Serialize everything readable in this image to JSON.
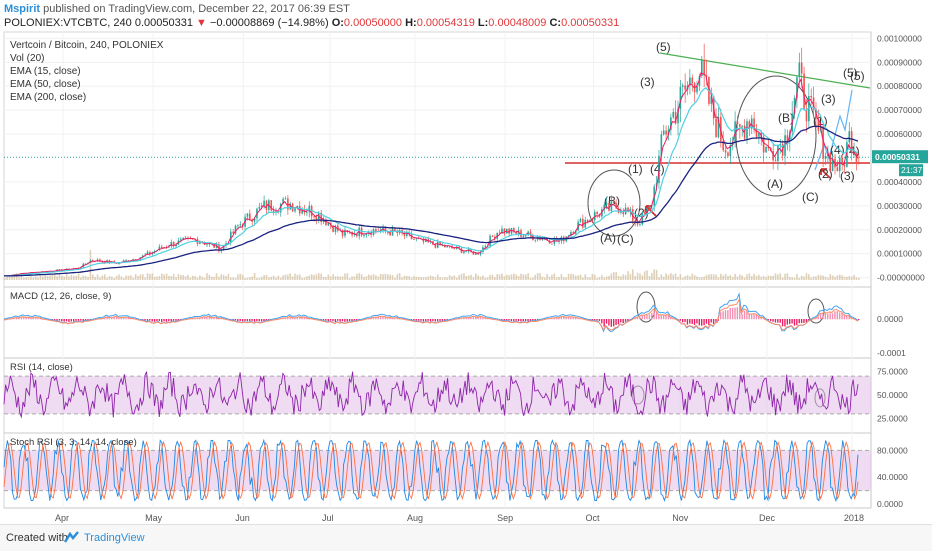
{
  "header": {
    "author": "Mspirit",
    "published_text": "published on TradingView.com, December 22, 2017 06:39 EST",
    "symbol_line": "POLONIEX:VTCBTC, 240",
    "last": "0.00050331",
    "arrow": "▼",
    "change": "−0.00008869 (−14.98%)",
    "o_label": "O:",
    "o_val": "0.00050000",
    "h_label": "H:",
    "h_val": "0.00054319",
    "l_label": "L:",
    "l_val": "0.00048009",
    "c_label": "C:",
    "c_val": "0.00050331"
  },
  "footer": {
    "created": "Created with",
    "brand": "TradingView"
  },
  "colors": {
    "up": "#26a69a",
    "down": "#ef5350",
    "ema15": "#e91e63",
    "ema50": "#4dd0e1",
    "ema200": "#1a237e",
    "rsi": "#8e24aa",
    "stoch_k": "#1e88e5",
    "stoch_d": "#ff7043",
    "band": "#e1bee7"
  },
  "chart_data": [
    {
      "type": "candlestick",
      "title": "Vertcoin / Bitcoin, 240, POLONIEX",
      "legend": [
        "Vol (20)",
        "EMA (15, close)",
        "EMA (50, close)",
        "EMA (200, close)"
      ],
      "x_ticks": [
        "Apr",
        "May",
        "Jun",
        "Jul",
        "Aug",
        "Sep",
        "Oct",
        "Nov",
        "Dec",
        "2018"
      ],
      "y_ticks": [
        "0.00100000",
        "0.00090000",
        "0.00080000",
        "0.00070000",
        "0.00060000",
        "0.00040000",
        "0.00030000",
        "0.00020000",
        "0.00010000",
        "-0.00000000"
      ],
      "ylim": [
        -1e-05,
        0.00101
      ],
      "price_anchors": [
        [
          0,
          7e-06
        ],
        [
          0.02,
          1.8e-05
        ],
        [
          0.06,
          3e-05
        ],
        [
          0.085,
          4e-05
        ],
        [
          0.1,
          7.5e-05
        ],
        [
          0.13,
          6e-05
        ],
        [
          0.16,
          9e-05
        ],
        [
          0.19,
          0.00014
        ],
        [
          0.22,
          0.00016
        ],
        [
          0.25,
          0.00012
        ],
        [
          0.27,
          0.00022
        ],
        [
          0.3,
          0.0003
        ],
        [
          0.33,
          0.00031
        ],
        [
          0.36,
          0.00027
        ],
        [
          0.39,
          0.00018
        ],
        [
          0.42,
          0.0002
        ],
        [
          0.45,
          0.00019
        ],
        [
          0.48,
          0.00015
        ],
        [
          0.52,
          0.00012
        ],
        [
          0.545,
          0.0001
        ],
        [
          0.57,
          0.0002
        ],
        [
          0.6,
          0.00018
        ],
        [
          0.64,
          0.00015
        ],
        [
          0.66,
          0.00022
        ],
        [
          0.69,
          0.00028
        ],
        [
          0.71,
          0.0003
        ],
        [
          0.73,
          0.00023
        ],
        [
          0.745,
          0.00029
        ],
        [
          0.76,
          0.0006
        ],
        [
          0.78,
          0.00075
        ],
        [
          0.8,
          0.00088
        ],
        [
          0.815,
          0.0007
        ],
        [
          0.83,
          0.00055
        ],
        [
          0.845,
          0.0006
        ],
        [
          0.86,
          0.00068
        ],
        [
          0.88,
          0.00052
        ],
        [
          0.9,
          0.00058
        ],
        [
          0.915,
          0.00083
        ],
        [
          0.93,
          0.00068
        ],
        [
          0.95,
          0.0005
        ],
        [
          0.965,
          0.00045
        ],
        [
          0.975,
          0.0006
        ],
        [
          0.985,
          0.0005
        ]
      ],
      "last_price": "0.00050331",
      "countdown": "21:37",
      "wave_labels": [
        "(A)",
        "(B)",
        "(C)",
        "(1)",
        "(2)",
        "(3)",
        "(4)",
        "(5)",
        "(3)",
        "(4)",
        "(5)",
        "(A)",
        "(B)",
        "(C)",
        "(1)",
        "(2)",
        "(3)",
        "(4)",
        "(5)"
      ]
    },
    {
      "type": "line",
      "title": "MACD (12, 26, close, 9)",
      "y_ticks": [
        "0.0000",
        "-0.0001"
      ]
    },
    {
      "type": "line",
      "title": "RSI (14, close)",
      "y_ticks": [
        "75.0000",
        "50.0000",
        "25.0000"
      ]
    },
    {
      "type": "line",
      "title": "Stoch RSI (3, 3, 14, 14, close)",
      "y_ticks": [
        "80.0000",
        "40.0000",
        "0.0000"
      ]
    }
  ]
}
